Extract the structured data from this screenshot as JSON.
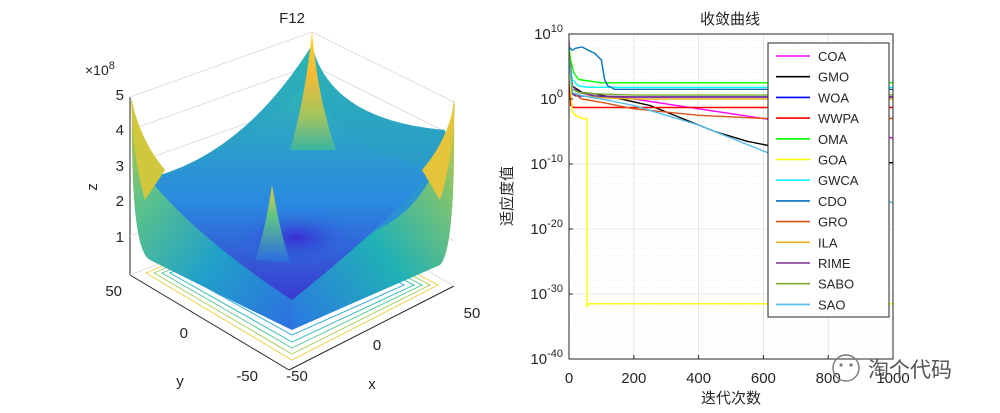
{
  "chart_data": [
    {
      "type": "surface3d",
      "title": "F12",
      "xlabel": "x",
      "ylabel": "y",
      "zlabel": "z",
      "z_multiplier": "×10^8",
      "z_multiplier_base": "×10",
      "z_multiplier_exp": "8",
      "x_ticks": [
        "-50",
        "0",
        "50"
      ],
      "y_ticks": [
        "-50",
        "0",
        "50"
      ],
      "z_ticks": [
        "1",
        "2",
        "3",
        "4",
        "5"
      ],
      "xlim": [
        -50,
        50
      ],
      "ylim": [
        -50,
        50
      ],
      "zlim": [
        0,
        5
      ],
      "colormap": "parula",
      "contours_on_base": true
    },
    {
      "type": "line",
      "title": "收敛曲线",
      "xlabel": "迭代次数",
      "ylabel": "适应度值",
      "yscale": "log",
      "xlim": [
        0,
        1000
      ],
      "ylim_exponents": [
        -40,
        10
      ],
      "x_ticks": [
        "0",
        "200",
        "400",
        "600",
        "800",
        "1000"
      ],
      "y_tick_exponents": [
        "10",
        "0",
        "-10",
        "-20",
        "-30",
        "-40"
      ],
      "y_tick_base": "10",
      "grid": true,
      "legend_position": "top-right",
      "series": [
        {
          "name": "COA",
          "color": "#ff00ff",
          "x": [
            0,
            5,
            30,
            100,
            200,
            400,
            600,
            800,
            1000
          ],
          "log10_y": [
            9,
            1,
            0.5,
            0.3,
            0,
            -1.5,
            -3,
            -4.5,
            -6
          ]
        },
        {
          "name": "GMO",
          "color": "#000000",
          "x": [
            0,
            10,
            40,
            80,
            160,
            250,
            350,
            450,
            550,
            650,
            750,
            850,
            900,
            1000
          ],
          "log10_y": [
            8,
            2,
            1,
            0.8,
            0,
            -1,
            -3,
            -5,
            -6.5,
            -7.5,
            -8.5,
            -9.5,
            -9.8,
            -9.8
          ]
        },
        {
          "name": "WOA",
          "color": "#0000ff",
          "x": [
            0,
            5,
            20,
            60,
            120,
            300,
            1000
          ],
          "log10_y": [
            8,
            1,
            0.5,
            0.4,
            0.3,
            0.3,
            0.3
          ]
        },
        {
          "name": "WWPA",
          "color": "#ff0000",
          "x": [
            0,
            5,
            15,
            50,
            100,
            300,
            1000
          ],
          "log10_y": [
            7,
            -1,
            -1.3,
            -1.3,
            -1.3,
            -1.3,
            -1.3
          ]
        },
        {
          "name": "OMA",
          "color": "#00ff00",
          "x": [
            0,
            5,
            15,
            30,
            100,
            300,
            1000
          ],
          "log10_y": [
            8,
            6,
            4,
            3,
            2.5,
            2.5,
            2.5
          ]
        },
        {
          "name": "GOA",
          "color": "#ffff00",
          "x": [
            0,
            10,
            20,
            40,
            55,
            56,
            60,
            1000
          ],
          "log10_y": [
            6,
            -2,
            -2.5,
            -3,
            -3,
            -32,
            -31.5,
            -31.5
          ]
        },
        {
          "name": "GWCA",
          "color": "#00ffff",
          "x": [
            0,
            10,
            30,
            60,
            100,
            200,
            1000
          ],
          "log10_y": [
            6,
            3,
            2,
            1.8,
            1.8,
            1.8,
            1.8
          ]
        },
        {
          "name": "CDO",
          "color": "#0072bd",
          "x": [
            0,
            10,
            20,
            40,
            60,
            80,
            100,
            110,
            120,
            130,
            140,
            200,
            1000
          ],
          "log10_y": [
            8,
            7.5,
            7.8,
            8,
            7.5,
            7,
            6,
            3,
            2,
            1.8,
            1.5,
            1.5,
            1.5
          ]
        },
        {
          "name": "GRO",
          "color": "#d95319",
          "x": [
            0,
            10,
            40,
            100,
            200,
            400,
            600,
            800,
            1000
          ],
          "log10_y": [
            7,
            1,
            0,
            -0.5,
            -1.5,
            -2.5,
            -3,
            -3,
            -3
          ]
        },
        {
          "name": "ILA",
          "color": "#edb120",
          "x": [
            0,
            10,
            40,
            100,
            200,
            400,
            1000
          ],
          "log10_y": [
            7,
            1,
            0.5,
            0.2,
            0,
            0,
            0
          ]
        },
        {
          "name": "RIME",
          "color": "#7e2f8e",
          "x": [
            0,
            10,
            30,
            80,
            200,
            400,
            1000
          ],
          "log10_y": [
            7,
            2,
            1,
            0.5,
            0.3,
            0.3,
            0.3
          ]
        },
        {
          "name": "SABO",
          "color": "#77ac30",
          "x": [
            0,
            10,
            30,
            80,
            200,
            400,
            1000
          ],
          "log10_y": [
            7,
            1.5,
            1,
            0.8,
            0.6,
            0.6,
            0.6
          ]
        },
        {
          "name": "SAO",
          "color": "#4dbeee",
          "x": [
            0,
            10,
            40,
            100,
            200,
            300,
            400,
            500,
            600,
            700,
            800,
            900,
            950,
            1000
          ],
          "log10_y": [
            6,
            1,
            0.5,
            0,
            -1,
            -2.5,
            -4,
            -6,
            -8,
            -10,
            -12,
            -14,
            -15,
            -16
          ]
        }
      ]
    }
  ],
  "watermark": "淘个代码"
}
